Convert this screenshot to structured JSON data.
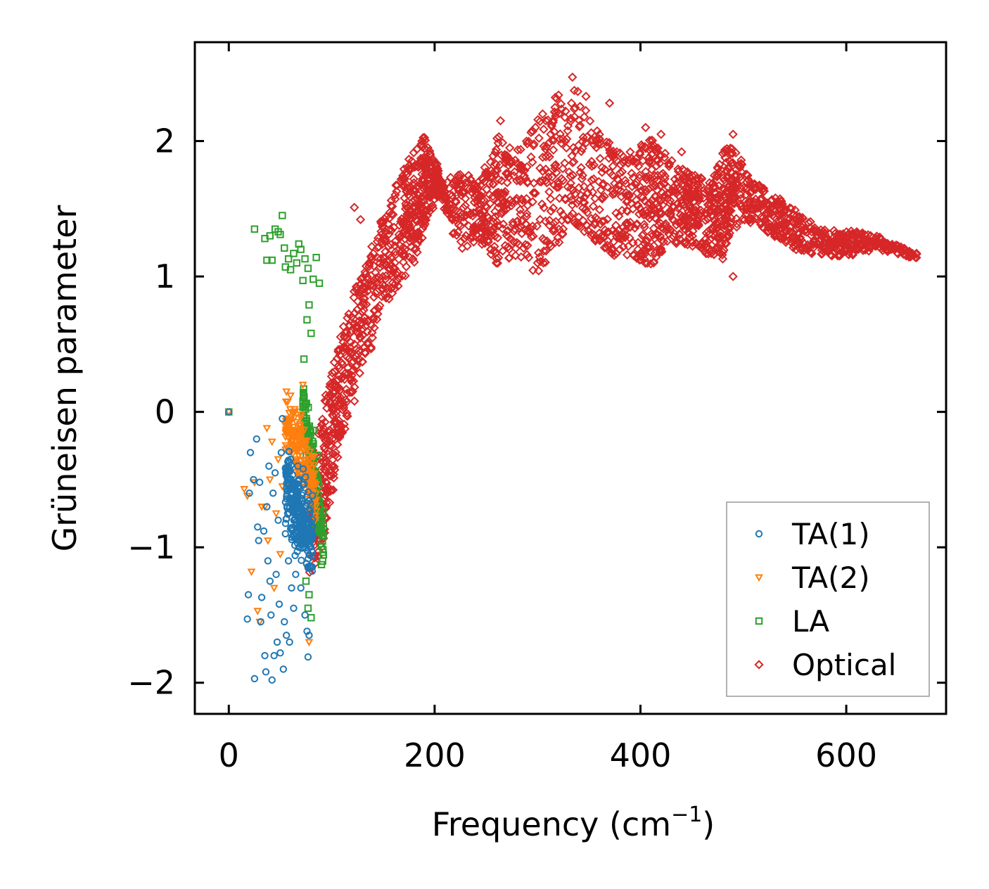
{
  "chart_data": {
    "type": "scatter",
    "title": "",
    "xlabel": "Frequency (cm",
    "xlabel_sup": "−1",
    "xlabel_close": ")",
    "ylabel": "Grüneisen parameter",
    "xlim": [
      -33,
      697
    ],
    "ylim": [
      -2.23,
      2.73
    ],
    "xticks": [
      0,
      200,
      400,
      600
    ],
    "xtick_labels": [
      "0",
      "200",
      "400",
      "600"
    ],
    "yticks": [
      -2,
      -1,
      0,
      1,
      2
    ],
    "ytick_labels": [
      "−2",
      "−1",
      "0",
      "1",
      "2"
    ],
    "ticks_direction": "in",
    "ticks_on_all_sides": true,
    "grid": false,
    "legend_position": "lower-right",
    "series": [
      {
        "name": "TA(1)",
        "marker": "circle",
        "color": "#1f77b4",
        "points": [
          [
            0,
            0
          ],
          [
            18,
            -1.53
          ],
          [
            19,
            -1.35
          ],
          [
            20,
            -0.6
          ],
          [
            21,
            -0.3
          ],
          [
            24,
            -0.5
          ],
          [
            25,
            -1.97
          ],
          [
            27,
            -0.2
          ],
          [
            28,
            -0.85
          ],
          [
            29,
            -0.95
          ],
          [
            30,
            -0.52
          ],
          [
            31,
            -1.55
          ],
          [
            32,
            -1.37
          ],
          [
            34,
            -0.88
          ],
          [
            35,
            -1.8
          ],
          [
            36,
            -1.92
          ],
          [
            37,
            -0.7
          ],
          [
            38,
            -1.1
          ],
          [
            39,
            -0.4
          ],
          [
            40,
            -1.25
          ],
          [
            41,
            -1.5
          ],
          [
            42,
            -1.98
          ],
          [
            43,
            -0.6
          ],
          [
            44,
            -1.8
          ],
          [
            45,
            -0.45
          ],
          [
            46,
            -1.2
          ],
          [
            47,
            -1.7
          ],
          [
            48,
            -0.8
          ],
          [
            49,
            -1.42
          ],
          [
            50,
            -1.78
          ],
          [
            51,
            -0.3
          ],
          [
            52,
            -0.05
          ],
          [
            53,
            -1.9
          ],
          [
            54,
            -1.55
          ],
          [
            55,
            -0.9
          ],
          [
            56,
            -1.65
          ],
          [
            57,
            -0.5
          ],
          [
            58,
            -1.1
          ],
          [
            59,
            -1.7
          ],
          [
            60,
            -0.35
          ],
          [
            61,
            -1.3
          ],
          [
            62,
            -0.7
          ],
          [
            63,
            -1.45
          ],
          [
            64,
            -0.55
          ],
          [
            65,
            -1.2
          ],
          [
            66,
            -0.9
          ],
          [
            67,
            -0.4
          ],
          [
            68,
            -1.0
          ],
          [
            69,
            -0.65
          ],
          [
            70,
            -1.3
          ],
          [
            71,
            -0.75
          ],
          [
            72,
            -0.6
          ],
          [
            73,
            -0.85
          ],
          [
            74,
            -1.5
          ],
          [
            75,
            -0.7
          ],
          [
            76,
            -1.62
          ],
          [
            77,
            -1.81
          ],
          [
            78,
            -1.65
          ]
        ],
        "cluster": {
          "x": [
            55,
            82
          ],
          "y_center": [
            -0.55,
            -0.95
          ],
          "spread": 0.28,
          "n": 260
        }
      },
      {
        "name": "TA(2)",
        "marker": "triangle-down",
        "color": "#ff7f0e",
        "points": [
          [
            0,
            0
          ],
          [
            15,
            -0.57
          ],
          [
            18,
            -0.62
          ],
          [
            22,
            -1.18
          ],
          [
            25,
            -0.52
          ],
          [
            28,
            -1.47
          ],
          [
            30,
            -1.55
          ],
          [
            32,
            -0.7
          ],
          [
            35,
            -0.7
          ],
          [
            37,
            -0.12
          ],
          [
            38,
            -0.95
          ],
          [
            40,
            -0.5
          ],
          [
            42,
            -0.22
          ],
          [
            44,
            -1.3
          ],
          [
            46,
            -0.75
          ],
          [
            48,
            -0.35
          ],
          [
            50,
            -1.05
          ],
          [
            52,
            -0.55
          ],
          [
            55,
            -0.1
          ],
          [
            56,
            0.15
          ],
          [
            58,
            -0.45
          ],
          [
            60,
            0.12
          ],
          [
            62,
            -0.25
          ],
          [
            64,
            0.02
          ],
          [
            66,
            -0.6
          ],
          [
            68,
            -0.15
          ],
          [
            70,
            -0.02
          ],
          [
            72,
            0.2
          ],
          [
            74,
            -0.5
          ],
          [
            76,
            -1.15
          ],
          [
            78,
            -1.7
          ],
          [
            80,
            -0.9
          ]
        ],
        "cluster": {
          "x": [
            55,
            85
          ],
          "y_center": [
            -0.05,
            -0.6
          ],
          "spread": 0.25,
          "n": 180
        }
      },
      {
        "name": "LA",
        "marker": "square",
        "color": "#2ca02c",
        "points": [
          [
            0,
            0
          ],
          [
            25,
            1.35
          ],
          [
            35,
            1.28
          ],
          [
            37,
            1.12
          ],
          [
            40,
            1.3
          ],
          [
            42,
            1.12
          ],
          [
            45,
            1.35
          ],
          [
            48,
            1.33
          ],
          [
            50,
            1.31
          ],
          [
            52,
            1.45
          ],
          [
            54,
            1.21
          ],
          [
            55,
            1.07
          ],
          [
            58,
            1.13
          ],
          [
            60,
            1.05
          ],
          [
            63,
            1.17
          ],
          [
            66,
            1.1
          ],
          [
            68,
            1.24
          ],
          [
            70,
            1.2
          ],
          [
            72,
            0.97
          ],
          [
            74,
            1.13
          ],
          [
            76,
            0.68
          ],
          [
            77,
            1.06
          ],
          [
            78,
            0.79
          ],
          [
            80,
            0.58
          ],
          [
            82,
            0.98
          ],
          [
            85,
            1.14
          ],
          [
            88,
            0.95
          ],
          [
            73,
            0.39
          ],
          [
            72,
            0.08
          ],
          [
            75,
            -1.25
          ],
          [
            78,
            -1.35
          ],
          [
            80,
            -1.52
          ],
          [
            77,
            -1.45
          ]
        ],
        "cluster": {
          "x": [
            72,
            92
          ],
          "y_center": [
            0.05,
            -0.95
          ],
          "spread": 0.22,
          "n": 140
        }
      },
      {
        "name": "Optical",
        "marker": "diamond",
        "color": "#d62728",
        "points": [
          [
            122,
            1.51
          ],
          [
            128,
            1.42
          ],
          [
            264,
            2.15
          ],
          [
            273,
            1.95
          ],
          [
            290,
            1.98
          ],
          [
            305,
            2.2
          ],
          [
            308,
            2.15
          ],
          [
            370,
            2.28
          ],
          [
            405,
            2.1
          ],
          [
            420,
            2.05
          ],
          [
            440,
            1.92
          ],
          [
            490,
            2.05
          ],
          [
            490,
            1.0
          ],
          [
            510,
            1.68
          ],
          [
            480,
            1.13
          ],
          [
            470,
            1.35
          ],
          [
            380,
            1.2
          ],
          [
            360,
            1.32
          ],
          [
            345,
            1.55
          ],
          [
            330,
            1.42
          ],
          [
            300,
            1.1
          ],
          [
            280,
            1.25
          ],
          [
            255,
            1.3
          ],
          [
            235,
            1.28
          ]
        ],
        "band": [
          [
            80,
            -1.2,
            -0.3
          ],
          [
            90,
            -1.0,
            -0.05
          ],
          [
            100,
            -0.6,
            0.3
          ],
          [
            110,
            -0.2,
            0.6
          ],
          [
            125,
            0.2,
            0.95
          ],
          [
            140,
            0.5,
            1.25
          ],
          [
            155,
            0.8,
            1.55
          ],
          [
            170,
            1.0,
            1.8
          ],
          [
            180,
            1.1,
            1.95
          ],
          [
            190,
            1.35,
            2.05
          ],
          [
            200,
            1.55,
            1.85
          ],
          [
            205,
            1.6,
            1.7
          ],
          [
            225,
            1.2,
            1.8
          ],
          [
            245,
            1.25,
            1.7
          ],
          [
            262,
            1.05,
            2.1
          ],
          [
            275,
            1.15,
            1.85
          ],
          [
            300,
            1.0,
            2.2
          ],
          [
            320,
            1.25,
            2.35
          ],
          [
            338,
            1.35,
            2.52
          ],
          [
            355,
            1.25,
            2.1
          ],
          [
            375,
            1.15,
            1.95
          ],
          [
            395,
            1.15,
            1.95
          ],
          [
            408,
            1.05,
            2.05
          ],
          [
            420,
            1.15,
            1.95
          ],
          [
            440,
            1.25,
            1.8
          ],
          [
            455,
            1.2,
            1.75
          ],
          [
            470,
            1.15,
            1.7
          ],
          [
            480,
            1.15,
            1.95
          ],
          [
            490,
            1.35,
            1.95
          ],
          [
            510,
            1.4,
            1.7
          ],
          [
            530,
            1.3,
            1.6
          ],
          [
            550,
            1.2,
            1.5
          ],
          [
            575,
            1.15,
            1.35
          ],
          [
            600,
            1.15,
            1.35
          ],
          [
            630,
            1.2,
            1.3
          ],
          [
            668,
            1.13,
            1.17
          ]
        ],
        "n_band": 2600
      }
    ]
  }
}
